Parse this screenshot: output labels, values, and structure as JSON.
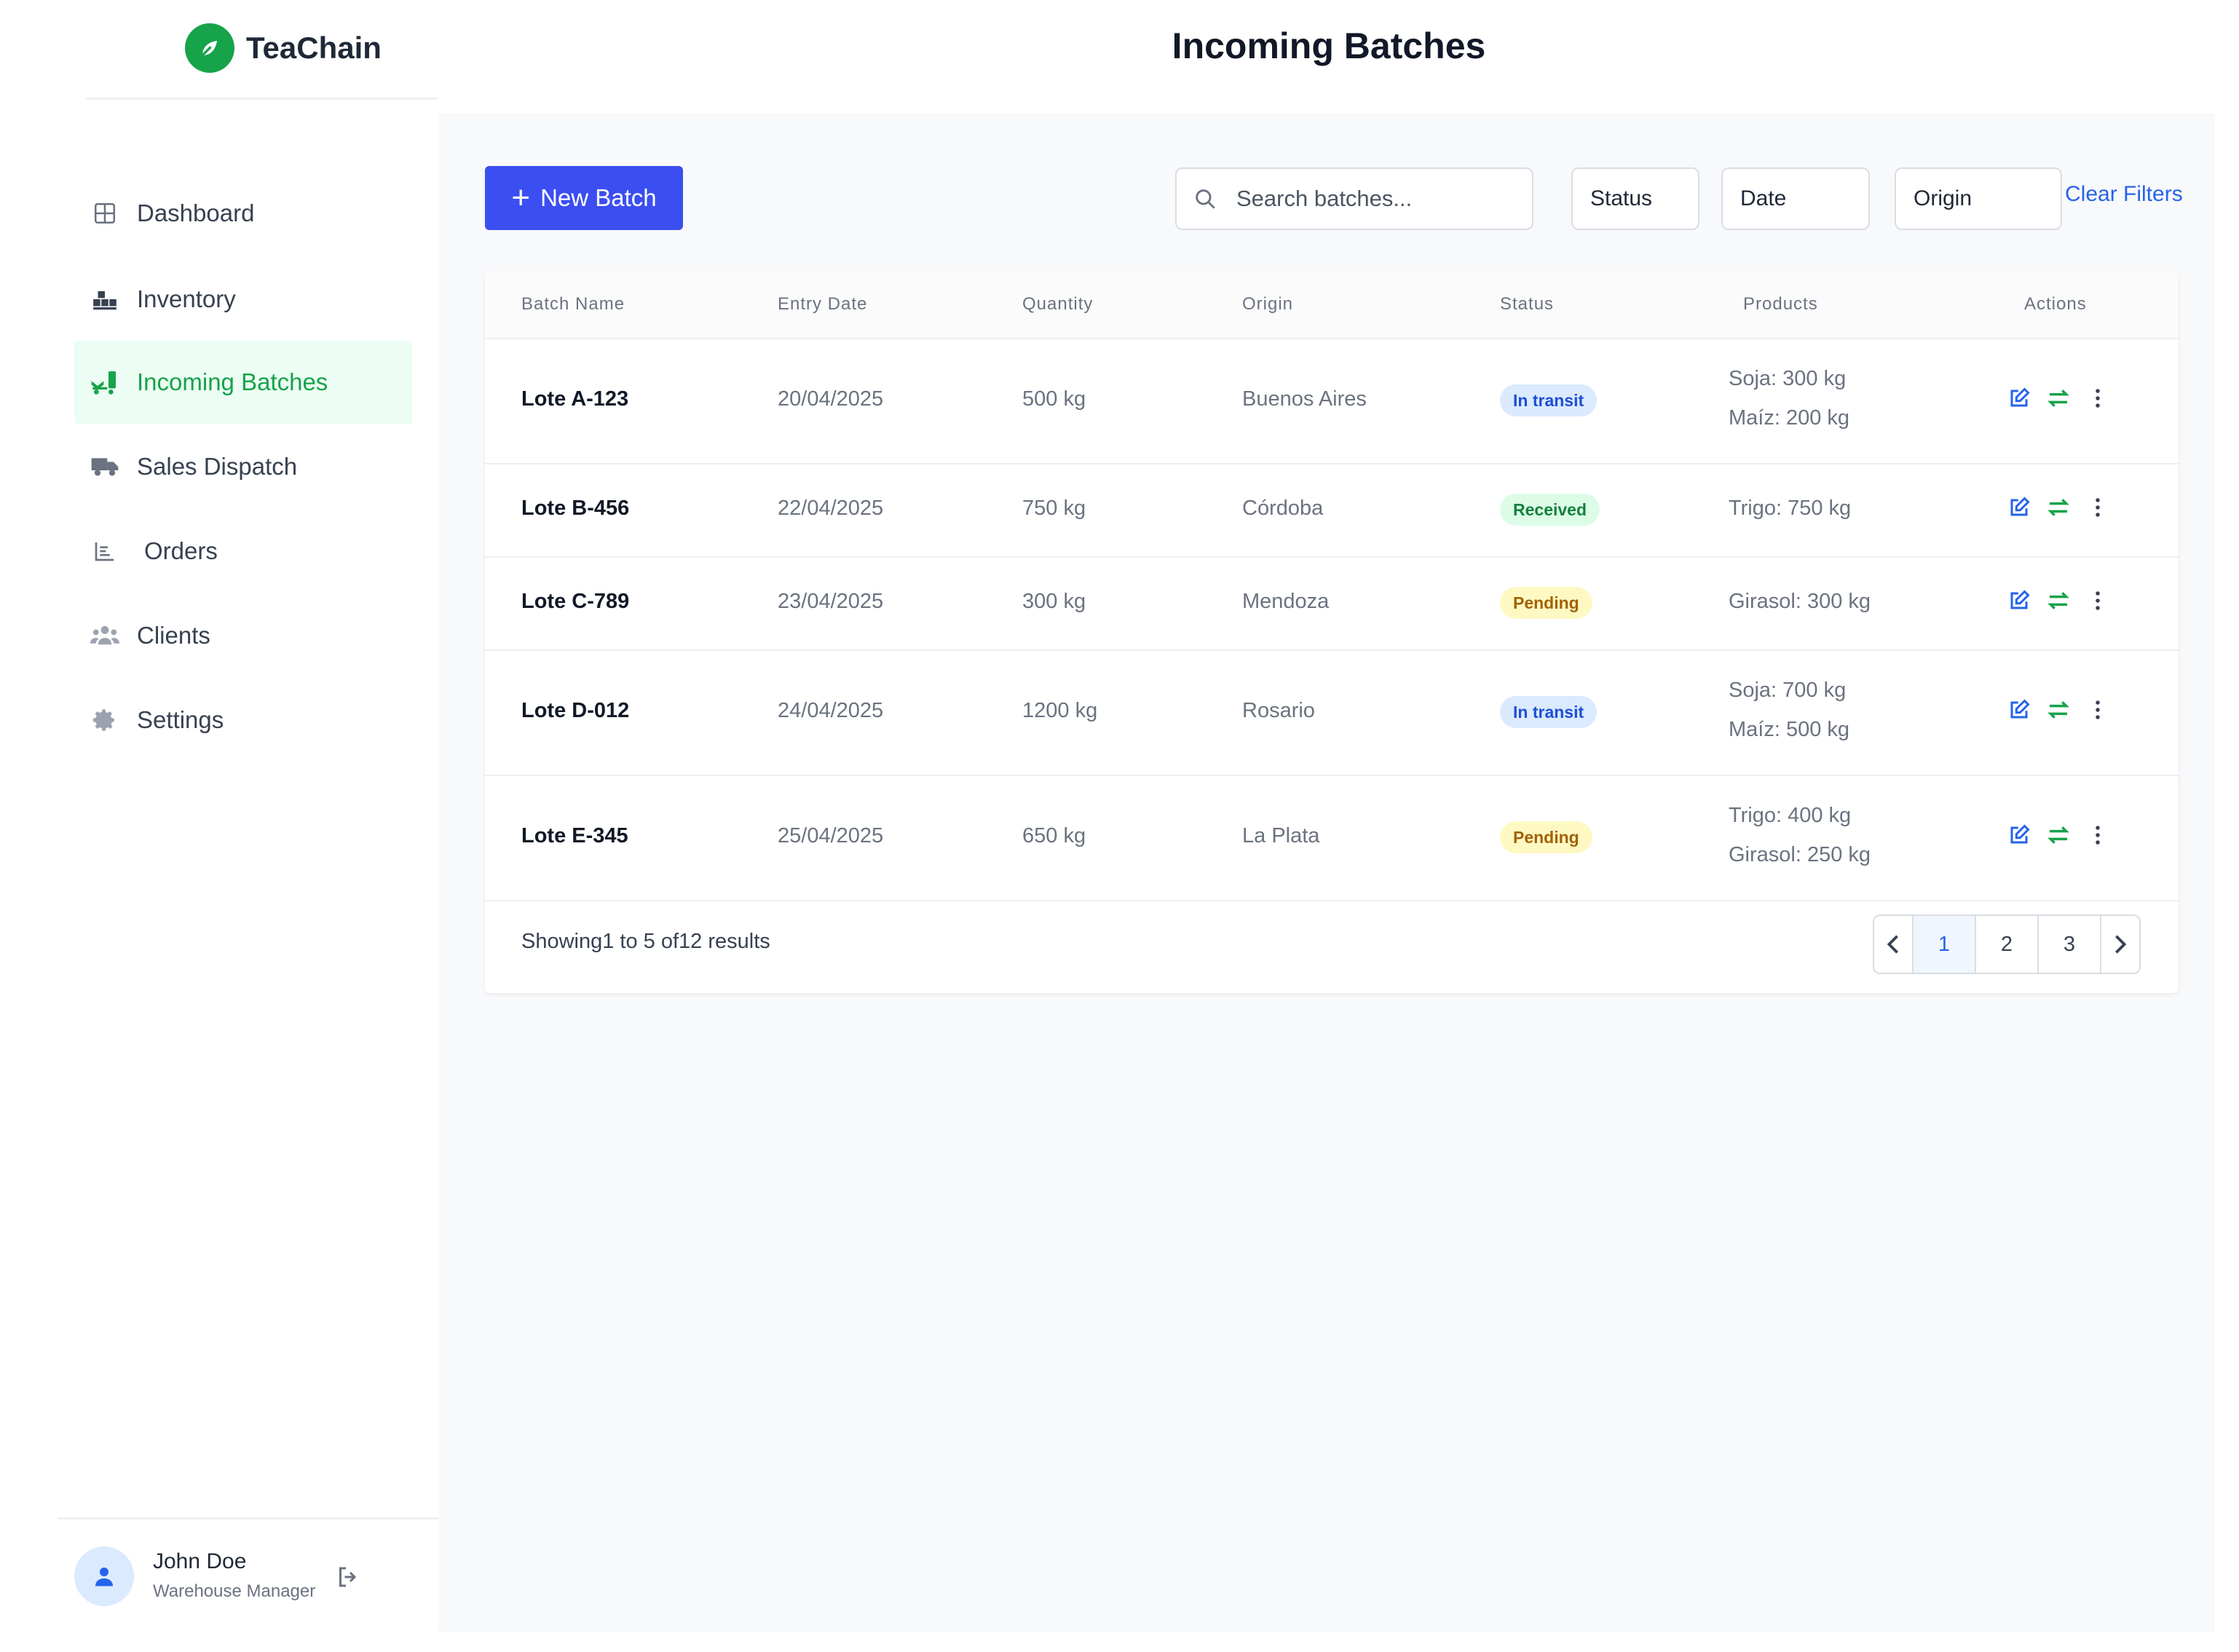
{
  "app": {
    "name": "TeaChain"
  },
  "header": {
    "title": "Incoming Batches"
  },
  "sidebar": {
    "items": [
      {
        "label": "Dashboard",
        "icon": "grid-icon"
      },
      {
        "label": "Inventory",
        "icon": "boxes-icon"
      },
      {
        "label": "Incoming Batches",
        "icon": "truck-loading-icon",
        "active": true
      },
      {
        "label": "Sales Dispatch",
        "icon": "truck-icon"
      },
      {
        "label": "Orders",
        "icon": "chart-list-icon"
      },
      {
        "label": "Clients",
        "icon": "users-icon"
      },
      {
        "label": "Settings",
        "icon": "gear-icon"
      }
    ],
    "user": {
      "name": "John Doe",
      "role": "Warehouse Manager"
    }
  },
  "toolbar": {
    "new_batch_label": "New Batch",
    "search_placeholder": "Search batches...",
    "filters": [
      "Status",
      "Date",
      "Origin"
    ],
    "clear_filters_label": "Clear Filters"
  },
  "table": {
    "columns": [
      "Batch Name",
      "Entry Date",
      "Quantity",
      "Origin",
      "Status",
      "Products",
      "Actions"
    ],
    "rows": [
      {
        "name": "Lote A-123",
        "date": "20/04/2025",
        "quantity": "500 kg",
        "origin": "Buenos Aires",
        "status": "In transit",
        "products": [
          "Soja: 300 kg",
          "Maíz: 200 kg"
        ]
      },
      {
        "name": "Lote B-456",
        "date": "22/04/2025",
        "quantity": "750 kg",
        "origin": "Córdoba",
        "status": "Received",
        "products": [
          "Trigo: 750 kg"
        ]
      },
      {
        "name": "Lote C-789",
        "date": "23/04/2025",
        "quantity": "300 kg",
        "origin": "Mendoza",
        "status": "Pending",
        "products": [
          "Girasol: 300 kg"
        ]
      },
      {
        "name": "Lote D-012",
        "date": "24/04/2025",
        "quantity": "1200 kg",
        "origin": "Rosario",
        "status": "In transit",
        "products": [
          "Soja: 700 kg",
          "Maíz: 500 kg"
        ]
      },
      {
        "name": "Lote E-345",
        "date": "25/04/2025",
        "quantity": "650 kg",
        "origin": "La Plata",
        "status": "Pending",
        "products": [
          "Trigo: 400 kg",
          "Girasol: 250 kg"
        ]
      }
    ],
    "footer": "Showing1 to 5   of12 results",
    "pages": [
      "1",
      "2",
      "3"
    ],
    "current_page": "1"
  },
  "colors": {
    "primary": "#3b4ef1",
    "brand": "#16a34a",
    "link": "#2563eb"
  }
}
